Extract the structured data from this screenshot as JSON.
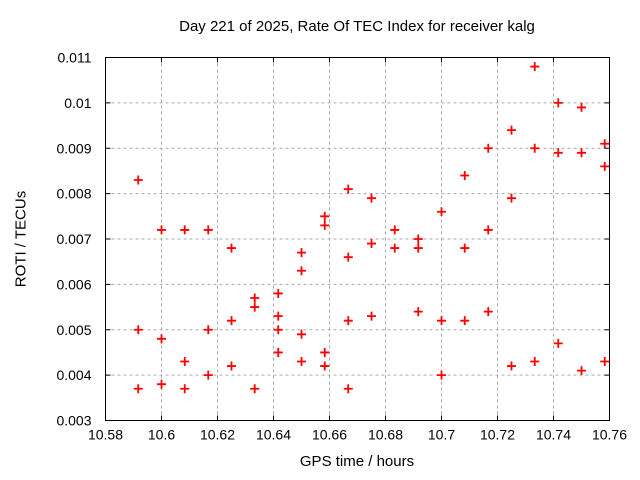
{
  "chart_data": {
    "type": "scatter",
    "title": "Day 221 of 2025, Rate Of TEC Index for receiver kalg",
    "xlabel": "GPS time / hours",
    "ylabel": "ROTI / TECUs",
    "xlim": [
      10.58,
      10.76
    ],
    "ylim": [
      0.003,
      0.011
    ],
    "grid": true,
    "grid_style": "dashed",
    "legend": "none",
    "marker": "plus",
    "marker_color": "#ff0000",
    "frame_color": "#000000",
    "grid_color": "#aaaaaa",
    "background_color": "#ffffff",
    "xticks": {
      "values": [
        10.58,
        10.6,
        10.62,
        10.64,
        10.66,
        10.68,
        10.7,
        10.72,
        10.74,
        10.76
      ],
      "labels": [
        "10.58",
        "10.6",
        "10.62",
        "10.64",
        "10.66",
        "10.68",
        "10.7",
        "10.72",
        "10.74",
        "10.76"
      ]
    },
    "yticks": {
      "values": [
        0.003,
        0.004,
        0.005,
        0.006,
        0.007,
        0.008,
        0.009,
        0.01,
        0.011
      ],
      "labels": [
        "0.003",
        "0.004",
        "0.005",
        "0.006",
        "0.007",
        "0.008",
        "0.009",
        "0.01",
        "0.011"
      ]
    },
    "points": [
      [
        10.5917,
        0.0083
      ],
      [
        10.5917,
        0.005
      ],
      [
        10.5917,
        0.0037
      ],
      [
        10.6,
        0.0072
      ],
      [
        10.6,
        0.0048
      ],
      [
        10.6,
        0.0038
      ],
      [
        10.6083,
        0.0072
      ],
      [
        10.6083,
        0.0043
      ],
      [
        10.6083,
        0.0037
      ],
      [
        10.6167,
        0.0072
      ],
      [
        10.6167,
        0.005
      ],
      [
        10.6167,
        0.004
      ],
      [
        10.625,
        0.0068
      ],
      [
        10.625,
        0.0052
      ],
      [
        10.625,
        0.0042
      ],
      [
        10.6333,
        0.0057
      ],
      [
        10.6333,
        0.0055
      ],
      [
        10.6333,
        0.0037
      ],
      [
        10.6417,
        0.0058
      ],
      [
        10.6417,
        0.0053
      ],
      [
        10.6417,
        0.005
      ],
      [
        10.6417,
        0.0045
      ],
      [
        10.65,
        0.0067
      ],
      [
        10.65,
        0.0063
      ],
      [
        10.65,
        0.0049
      ],
      [
        10.65,
        0.0043
      ],
      [
        10.6583,
        0.0075
      ],
      [
        10.6583,
        0.0073
      ],
      [
        10.6583,
        0.0045
      ],
      [
        10.6583,
        0.0042
      ],
      [
        10.6667,
        0.0081
      ],
      [
        10.6667,
        0.0066
      ],
      [
        10.6667,
        0.0052
      ],
      [
        10.6667,
        0.0037
      ],
      [
        10.675,
        0.0079
      ],
      [
        10.675,
        0.0069
      ],
      [
        10.675,
        0.0053
      ],
      [
        10.6833,
        0.0072
      ],
      [
        10.6833,
        0.0068
      ],
      [
        10.6917,
        0.007
      ],
      [
        10.6917,
        0.0068
      ],
      [
        10.6917,
        0.0054
      ],
      [
        10.7,
        0.0076
      ],
      [
        10.7,
        0.0052
      ],
      [
        10.7,
        0.004
      ],
      [
        10.7083,
        0.0084
      ],
      [
        10.7083,
        0.0068
      ],
      [
        10.7083,
        0.0052
      ],
      [
        10.7167,
        0.009
      ],
      [
        10.7167,
        0.0072
      ],
      [
        10.7167,
        0.0054
      ],
      [
        10.725,
        0.0094
      ],
      [
        10.725,
        0.0079
      ],
      [
        10.725,
        0.0042
      ],
      [
        10.7333,
        0.0108
      ],
      [
        10.7333,
        0.009
      ],
      [
        10.7333,
        0.0043
      ],
      [
        10.7417,
        0.01
      ],
      [
        10.7417,
        0.0089
      ],
      [
        10.7417,
        0.0047
      ],
      [
        10.75,
        0.0099
      ],
      [
        10.75,
        0.0089
      ],
      [
        10.75,
        0.0041
      ],
      [
        10.7583,
        0.0091
      ],
      [
        10.7583,
        0.0086
      ],
      [
        10.7583,
        0.0043
      ]
    ]
  }
}
